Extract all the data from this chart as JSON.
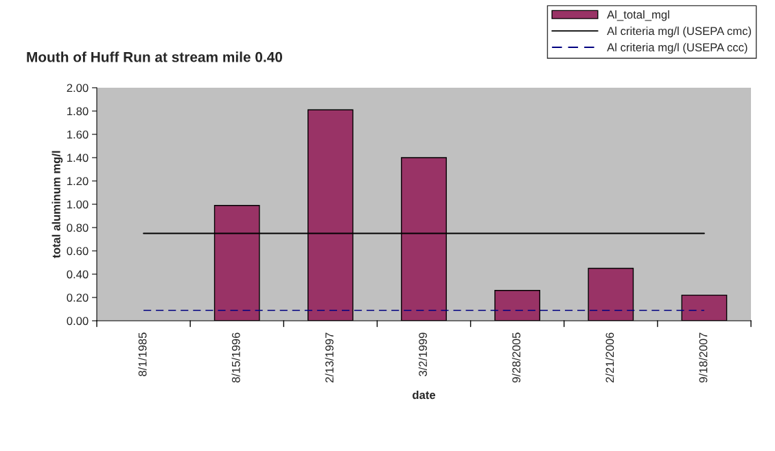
{
  "chart_data": {
    "type": "bar",
    "title": "Mouth of Huff Run at stream mile 0.40",
    "xlabel": "date",
    "ylabel": "total aluminum mg/l",
    "categories": [
      "8/1/1985",
      "8/15/1996",
      "2/13/1997",
      "3/2/1999",
      "9/28/2005",
      "2/21/2006",
      "9/18/2007"
    ],
    "series": [
      {
        "name": "Al_total_mgl",
        "color": "#993366",
        "values": [
          null,
          0.99,
          1.81,
          1.4,
          0.26,
          0.45,
          0.22
        ]
      },
      {
        "name": "Al criteria mg/l (USEPA cmc)",
        "type": "line",
        "color": "#000000",
        "line_style": "solid",
        "values": [
          0.75,
          0.75,
          0.75,
          0.75,
          0.75,
          0.75,
          0.75
        ]
      },
      {
        "name": "Al criteria mg/l (USEPA ccc)",
        "type": "line",
        "color": "#000080",
        "line_style": "dashed",
        "values": [
          0.09,
          0.09,
          0.09,
          0.09,
          0.09,
          0.09,
          0.09
        ]
      }
    ],
    "ylim": [
      0,
      2
    ],
    "yticks": [
      {
        "value": 0,
        "label": "0.00"
      },
      {
        "value": 0.2,
        "label": "0.20"
      },
      {
        "value": 0.4,
        "label": "0.40"
      },
      {
        "value": 0.6,
        "label": "0.60"
      },
      {
        "value": 0.8,
        "label": "0.80"
      },
      {
        "value": 1.0,
        "label": "1.00"
      },
      {
        "value": 1.2,
        "label": "1.20"
      },
      {
        "value": 1.4,
        "label": "1.40"
      },
      {
        "value": 1.6,
        "label": "1.60"
      },
      {
        "value": 1.8,
        "label": "1.80"
      },
      {
        "value": 2.0,
        "label": "2.00"
      }
    ],
    "grid": false,
    "legend": "top right"
  }
}
